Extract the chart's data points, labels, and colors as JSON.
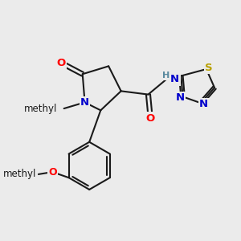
{
  "bg_color": "#ebebeb",
  "bond_color": "#1a1a1a",
  "bond_width": 1.5,
  "atom_colors": {
    "O": "#ff0000",
    "N": "#0000cc",
    "S": "#b8a000",
    "C": "#1a1a1a",
    "H": "#5a8a9f"
  },
  "font_size_atom": 9.5,
  "font_size_small": 8.5
}
